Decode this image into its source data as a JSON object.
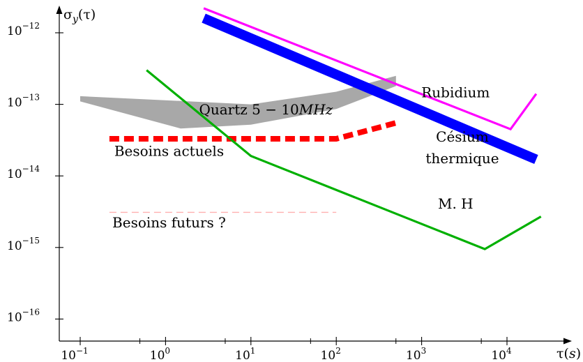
{
  "chart_data": {
    "type": "line",
    "xscale": "log",
    "yscale": "log",
    "xlabel": "τ(s)",
    "ylabel": "σy(τ)",
    "xlim": [
      0.05,
      60000
    ],
    "ylim": [
      3e-17,
      2e-12
    ],
    "x_ticks": [
      {
        "value": 0.1,
        "base": "10",
        "exp": "−1"
      },
      {
        "value": 1,
        "base": "10",
        "exp": "0"
      },
      {
        "value": 10,
        "base": "10",
        "exp": "1"
      },
      {
        "value": 100,
        "base": "10",
        "exp": "2"
      },
      {
        "value": 1000,
        "base": "10",
        "exp": "3"
      },
      {
        "value": 10000,
        "base": "10",
        "exp": "4"
      }
    ],
    "y_ticks": [
      {
        "value": 1e-12,
        "base": "10",
        "exp": "−12"
      },
      {
        "value": 1e-13,
        "base": "10",
        "exp": "−13"
      },
      {
        "value": 1e-14,
        "base": "10",
        "exp": "−14"
      },
      {
        "value": 1e-15,
        "base": "10",
        "exp": "−15"
      },
      {
        "value": 1e-16,
        "base": "10",
        "exp": "−16"
      }
    ],
    "series": [
      {
        "name": "Rubidium",
        "style": "line",
        "color": "#ff00ff",
        "points": [
          [
            2.8,
            2.2e-12
          ],
          [
            11000,
            4.5e-14
          ],
          [
            22000,
            1.4e-13
          ]
        ]
      },
      {
        "name": "Césium thermique",
        "style": "thick-line",
        "color": "#0000ff",
        "points": [
          [
            2.8,
            1.6e-12
          ],
          [
            22000,
            1.7e-14
          ]
        ]
      },
      {
        "name": "M. H",
        "style": "line",
        "color": "#00b000",
        "points": [
          [
            0.6,
            3e-13
          ],
          [
            10,
            1.9e-14
          ],
          [
            5500,
            9.5e-16
          ],
          [
            25000,
            2.7e-15
          ]
        ]
      },
      {
        "name": "Quartz 5−10MHz",
        "style": "band",
        "color": "#a8a8a8",
        "upper": [
          [
            0.1,
            1.3e-13
          ],
          [
            10,
            1e-13
          ],
          [
            100,
            1.5e-13
          ],
          [
            500,
            2.5e-13
          ]
        ],
        "lower": [
          [
            0.1,
            1.1e-13
          ],
          [
            1.5,
            4.6e-14
          ],
          [
            10,
            5.2e-14
          ],
          [
            100,
            8.6e-14
          ],
          [
            500,
            1.8e-13
          ]
        ]
      },
      {
        "name": "Besoins actuels",
        "style": "dashed",
        "color": "#ff0000",
        "points": [
          [
            0.22,
            3.3e-14
          ],
          [
            100,
            3.3e-14
          ],
          [
            500,
            5.5e-14
          ]
        ]
      },
      {
        "name": "Besoins futurs ?",
        "style": "dashed-thin",
        "color": "#ffb0b0",
        "points": [
          [
            0.22,
            3.1e-15
          ],
          [
            100,
            3.1e-15
          ]
        ]
      }
    ],
    "annotations": [
      {
        "text": "Rubidium",
        "x": 2500,
        "y": 1.25e-13
      },
      {
        "text": "Césium",
        "x": 3000,
        "y": 3e-14
      },
      {
        "text": "thermique",
        "x": 3000,
        "y": 1.5e-14
      },
      {
        "text": "M. H",
        "x": 2500,
        "y": 3.5e-15
      },
      {
        "text": "Besoins actuels",
        "x": 1.1,
        "y": 1.9e-14
      },
      {
        "text": "Besoins futurs ?",
        "x": 1.1,
        "y": 1.9e-15
      }
    ],
    "quartz_label": {
      "prefix": "Quartz 5",
      "minus": "−",
      "value": "10",
      "unit": "MHz",
      "x": 15,
      "y": 7.2e-14
    },
    "legend": "none",
    "grid": false
  }
}
